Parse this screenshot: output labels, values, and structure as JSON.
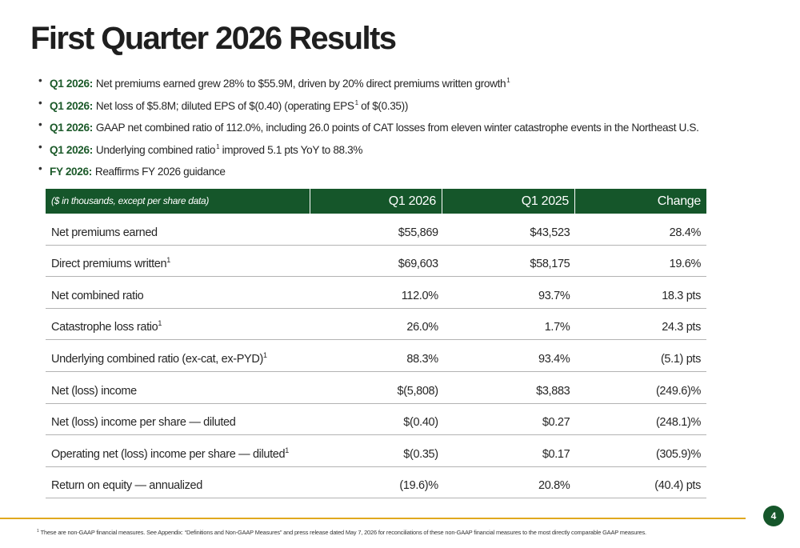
{
  "slide": {
    "title": "First Quarter 2026 Results",
    "page_number": "4"
  },
  "bullets": [
    {
      "lead": "Q1 2026:",
      "text": "Net premiums earned grew 28% to $55.9M, driven by 20% direct premiums written growth",
      "note": "1",
      "tail": ""
    },
    {
      "lead": "Q1 2026:",
      "text": "Net loss of $5.8M; diluted EPS of $(0.40) (operating EPS",
      "note": "1",
      "tail": " of $(0.35))"
    },
    {
      "lead": "Q1 2026:",
      "text": "GAAP net combined ratio of 112.0%, including 26.0 points of CAT losses from eleven winter catastrophe events in the Northeast U.S.",
      "note": "",
      "tail": ""
    },
    {
      "lead": "Q1 2026:",
      "text": "Underlying combined ratio",
      "note": "1",
      "tail": " improved 5.1 pts YoY to 88.3%"
    },
    {
      "lead": "FY 2026:",
      "text": "Reaffirms FY 2026 guidance",
      "note": "",
      "tail": ""
    }
  ],
  "table": {
    "header": {
      "label": "($ in thousands, except per share data)",
      "col1": "Q1 2026",
      "col2": "Q1 2025",
      "col3": "Change"
    },
    "rows": [
      {
        "label": "Net premiums earned",
        "note": "",
        "q1_2026": "$55,869",
        "q1_2025": "$43,523",
        "change": "28.4%"
      },
      {
        "label": "Direct premiums written",
        "note": "1",
        "q1_2026": "$69,603",
        "q1_2025": "$58,175",
        "change": "19.6%"
      },
      {
        "label": "Net combined ratio",
        "note": "",
        "q1_2026": "112.0%",
        "q1_2025": "93.7%",
        "change": "18.3 pts"
      },
      {
        "label": "Catastrophe loss ratio",
        "note": "1",
        "q1_2026": "26.0%",
        "q1_2025": "1.7%",
        "change": "24.3 pts"
      },
      {
        "label": "Underlying combined ratio (ex-cat, ex-PYD)",
        "note": "1",
        "q1_2026": "88.3%",
        "q1_2025": "93.4%",
        "change": "(5.1) pts"
      },
      {
        "label": "Net (loss) income",
        "note": "",
        "q1_2026": "$(5,808)",
        "q1_2025": "$3,883",
        "change": "(249.6)%"
      },
      {
        "label": "Net (loss) income per share — diluted",
        "note": "",
        "q1_2026": "$(0.40)",
        "q1_2025": "$0.27",
        "change": "(248.1)%"
      },
      {
        "label": "Operating net (loss) income per share — diluted",
        "note": "1",
        "q1_2026": "$(0.35)",
        "q1_2025": "$0.17",
        "change": "(305.9)%"
      },
      {
        "label": "Return on equity — annualized",
        "note": "",
        "q1_2026": "(19.6)%",
        "q1_2025": "20.8%",
        "change": "(40.4) pts"
      }
    ]
  },
  "footnote": {
    "marker": "1",
    "text": "These are non-GAAP financial measures. See Appendix: “Definitions and Non-GAAP Measures” and press release dated May 7, 2026 for reconciliations of these non-GAAP financial measures to the most directly comparable GAAP measures."
  },
  "colors": {
    "brand_green": "#15562a",
    "accent_gold": "#e0a81e",
    "lead_green": "#1c5a2a"
  }
}
